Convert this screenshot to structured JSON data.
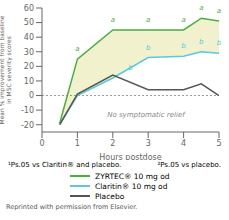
{
  "chart_data": {
    "type": "line",
    "xlabel": "Hours postdose",
    "ylabel": "Mean % improvement from baseline\nin MSC severity scores",
    "x": [
      0.5,
      1,
      2,
      3,
      4,
      4.5,
      5
    ],
    "series": [
      {
        "name": "ZYRTEC® 10 mg od",
        "color": "#4aaf3a",
        "values": [
          -19,
          25,
          45,
          45,
          45,
          53,
          51
        ]
      },
      {
        "name": "Claritin® 10 mg od",
        "color": "#5ac8e0",
        "values": [
          -20,
          0,
          12,
          26,
          27,
          30,
          29
        ]
      },
      {
        "name": "Placebo",
        "color": "#555555",
        "values": [
          -20,
          1,
          14,
          4,
          4,
          8,
          0
        ]
      }
    ],
    "fill_between": {
      "from": "Claritin® 10 mg od",
      "to": "ZYRTEC® 10 mg od",
      "color": "#f0f0c8"
    },
    "hline": 0,
    "xlim": [
      0,
      5
    ],
    "ylim": [
      -25,
      60
    ],
    "xticks": [
      0,
      1,
      2,
      3,
      4,
      5
    ],
    "yticks": [
      -20,
      -10,
      0,
      10,
      20,
      30,
      40,
      50,
      60
    ],
    "grid": false,
    "legend": "bottom",
    "annotations": [
      {
        "text": "a",
        "x": 1,
        "y": 27,
        "color": "#4aaf3a"
      },
      {
        "text": "a",
        "x": 2,
        "y": 47,
        "color": "#4aaf3a"
      },
      {
        "text": "a",
        "x": 3,
        "y": 47,
        "color": "#4aaf3a"
      },
      {
        "text": "a",
        "x": 4,
        "y": 47,
        "color": "#4aaf3a"
      },
      {
        "text": "a",
        "x": 4.5,
        "y": 55,
        "color": "#4aaf3a"
      },
      {
        "text": "a",
        "x": 5,
        "y": 53,
        "color": "#4aaf3a"
      },
      {
        "text": "b",
        "x": 2.5,
        "y": 14,
        "color": "#5ac8e0"
      },
      {
        "text": "b",
        "x": 3,
        "y": 28,
        "color": "#5ac8e0"
      },
      {
        "text": "b",
        "x": 4,
        "y": 29,
        "color": "#5ac8e0"
      },
      {
        "text": "b",
        "x": 4.5,
        "y": 32,
        "color": "#5ac8e0"
      },
      {
        "text": "b",
        "x": 5,
        "y": 31,
        "color": "#5ac8e0"
      },
      {
        "text": "No symptomatic relief",
        "x": 1.7,
        "y": -13,
        "color": "#888888"
      }
    ],
    "notes": [
      "¹Ps.05 vs Claritin® and placebo.",
      "²Ps.05 vs placebo."
    ],
    "reprint": "Reprinted with permission from Elsevier."
  }
}
